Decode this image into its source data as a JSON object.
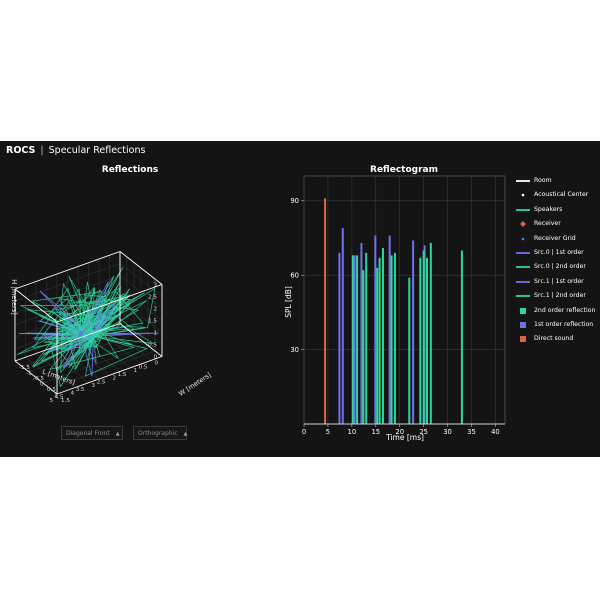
{
  "app": {
    "brand": "ROCS",
    "separator": "|",
    "title": "Specular Reflections"
  },
  "left_panel": {
    "title": "Reflections",
    "axes": {
      "x_label": "L [meters]",
      "y_label": "W [meters]",
      "z_label": "H [meters]",
      "x_ticks": [
        "0",
        "0.5",
        "1",
        "1.5",
        "2",
        "2.5",
        "3",
        "3.5",
        "4",
        "4.5",
        "5"
      ],
      "y_ticks": [
        "-1.5",
        "-1",
        "-0.5",
        "0",
        "0.5",
        "1",
        "1.5"
      ],
      "z_ticks": [
        "0",
        "0.5",
        "1",
        "1.5",
        "2",
        "2.5",
        "3"
      ]
    },
    "controls": {
      "view_value": "Diagonal Front",
      "projection_value": "Orthographic"
    },
    "colors": {
      "room": "#ffffff",
      "second_order": "#2ed69e",
      "first_order": "#6f72ec"
    }
  },
  "chart_data": {
    "type": "bar",
    "title": "Reflectogram",
    "xlabel": "Time [ms]",
    "ylabel": "SPL [dB]",
    "xlim": [
      0,
      42
    ],
    "ylim": [
      0,
      100
    ],
    "x_ticks": [
      0,
      5,
      10,
      15,
      20,
      25,
      30,
      35,
      40
    ],
    "y_ticks": [
      30,
      60,
      90
    ],
    "grid": true,
    "legend_position": "right",
    "series": [
      {
        "name": "Direct sound",
        "color": "#e0624a",
        "x": [
          4.4
        ],
        "values": [
          91
        ]
      },
      {
        "name": "1st order reflection",
        "color": "#6f72ec",
        "x": [
          7.4,
          8.1,
          10.6,
          12.0,
          14.9,
          17.9,
          22.8,
          25.2
        ],
        "values": [
          69,
          79,
          68,
          73,
          76,
          76,
          74,
          72
        ]
      },
      {
        "name": "2nd order reflection",
        "color": "#2ed69e",
        "x": [
          10.2,
          11.1,
          12.4,
          13.0,
          15.3,
          15.8,
          16.5,
          18.3,
          19.0,
          22.0,
          24.3,
          25.0,
          25.7,
          26.5,
          33.0
        ],
        "values": [
          68,
          68,
          62,
          69,
          63,
          67,
          71,
          68,
          69,
          59,
          67,
          70,
          67,
          73,
          70
        ]
      }
    ]
  },
  "legend": [
    {
      "label": "Room",
      "kind": "line",
      "color": "#ffffff"
    },
    {
      "label": "Acoustical Center",
      "kind": "dot",
      "color": "#ffffff"
    },
    {
      "label": "Speakers",
      "kind": "line",
      "color": "#2ed69e"
    },
    {
      "label": "Receiver",
      "kind": "diamond",
      "color": "#e0624a"
    },
    {
      "label": "Receiver Grid",
      "kind": "dot",
      "color": "#6f72ec"
    },
    {
      "label": "Src.0 | 1st order",
      "kind": "line",
      "color": "#6f72ec"
    },
    {
      "label": "Src.0 | 2nd order",
      "kind": "line",
      "color": "#2ed69e"
    },
    {
      "label": "Src.1 | 1st order",
      "kind": "line",
      "color": "#6f72ec"
    },
    {
      "label": "Src.1 | 2nd order",
      "kind": "line",
      "color": "#2ed69e"
    },
    {
      "label": "2nd order reflection",
      "kind": "square",
      "color": "#2ed69e"
    },
    {
      "label": "1st order reflection",
      "kind": "square",
      "color": "#6f72ec"
    },
    {
      "label": "Direct sound",
      "kind": "square",
      "color": "#e0624a"
    }
  ]
}
